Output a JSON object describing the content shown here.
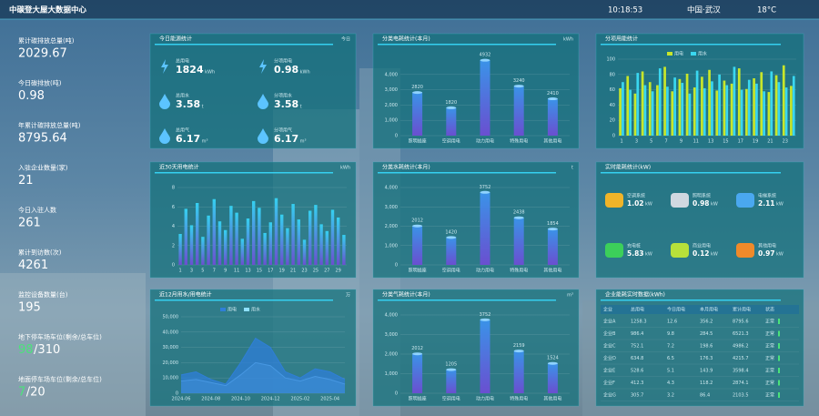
{
  "header": {
    "title": "中碳登大屋大数据中心",
    "time": "10:18:53",
    "location": "中国·武汉",
    "temperature": "18°C"
  },
  "stats": [
    {
      "label": "累计碳排放总量(吨)",
      "value": 2029.67
    },
    {
      "label": "今日碳排放(吨)",
      "value": 0.98
    },
    {
      "label": "年累计碳排放总量(吨)",
      "value": 8795.64
    },
    {
      "label": "入驻企业数量(家)",
      "value": 21
    },
    {
      "label": "今日入驻人数",
      "value": 261
    },
    {
      "label": "累计到访数(次)",
      "value": 4261
    },
    {
      "label": "监控设备数量(台)",
      "value": 195
    },
    {
      "label": "地下停车场车位(剩余/总车位)",
      "value": 98,
      "total": "/310"
    },
    {
      "label": "地面停车场车位(剩余/总车位)",
      "value": 7,
      "total": "/20"
    }
  ],
  "panels": [
    {
      "type": "kpi",
      "title": "今日能源统计",
      "unit": "今日",
      "items": [
        {
          "label": "总用电",
          "value": 1824,
          "unit": "kWh",
          "icon": "bolt"
        },
        {
          "label": "分项用电",
          "value": 0.98,
          "unit": "kWh",
          "icon": "bolt"
        },
        {
          "label": "总用水",
          "value": 3.58,
          "unit": "t",
          "icon": "drop"
        },
        {
          "label": "分项用水",
          "value": 3.58,
          "unit": "t",
          "icon": "drop"
        },
        {
          "label": "总用气",
          "value": 6.17,
          "unit": "m³",
          "icon": "drop"
        },
        {
          "label": "分项用气",
          "value": 6.17,
          "unit": "m³",
          "icon": "drop"
        }
      ]
    },
    {
      "type": "bar",
      "title": "分类电耗统计(本月)",
      "unit": "kWh",
      "color": "#3a93e8",
      "categories": [
        "照明插座",
        "空调用电",
        "动力用电",
        "特殊用电",
        "其他用电"
      ],
      "values": [
        2820,
        1820,
        4932,
        3240,
        2410
      ],
      "ylim": [
        0,
        5000
      ],
      "yticks": [
        0,
        {
          "value": 1000,
          "label": "1,000"
        },
        {
          "value": 2000,
          "label": "2,000"
        },
        {
          "value": 3000,
          "label": "3,000"
        },
        {
          "value": 4000,
          "label": "4,000"
        }
      ]
    },
    {
      "type": "grouped",
      "title": "分项用能统计",
      "color": "#c8e62a",
      "categories": [
        "1",
        null,
        "3",
        null,
        "5",
        null,
        "7",
        null,
        "9",
        null,
        "11",
        null,
        "13",
        null,
        "15",
        null,
        "17",
        null,
        "19",
        null,
        "21",
        null,
        "23",
        null
      ],
      "series": [
        {
          "name": "用电",
          "color": "#c8e62a",
          "values": [
            62,
            78,
            55,
            84,
            70,
            66,
            90,
            58,
            74,
            81,
            63,
            77,
            86,
            59,
            72,
            68,
            88,
            61,
            75,
            83,
            57,
            79,
            92,
            65
          ]
        },
        {
          "name": "用水",
          "color": "#3ad7f0",
          "values": [
            70,
            60,
            82,
            66,
            58,
            88,
            64,
            76,
            69,
            55,
            85,
            62,
            71,
            80,
            66,
            90,
            60,
            73,
            68,
            58,
            84,
            70,
            63,
            78
          ]
        }
      ],
      "ylim": [
        0,
        100
      ],
      "yticks": [
        0,
        20,
        40,
        60,
        80,
        100
      ]
    },
    {
      "type": "bar",
      "title": "近30天用电统计",
      "unit": "kWh",
      "color": "#35d0f0",
      "categories": [
        "1",
        null,
        "3",
        null,
        "5",
        null,
        "7",
        null,
        "9",
        null,
        "11",
        null,
        "13",
        null,
        "15",
        null,
        "17",
        null,
        "19",
        null,
        "21",
        null,
        "23",
        null,
        "25",
        null,
        "27",
        null,
        "29",
        null
      ],
      "values": [
        3.2,
        5.8,
        4.1,
        6.4,
        2.9,
        5.1,
        6.8,
        4.5,
        3.6,
        6.1,
        5.4,
        2.7,
        4.8,
        6.6,
        5.9,
        3.3,
        4.4,
        6.9,
        5.2,
        3.8,
        6.3,
        4.7,
        2.6,
        5.6,
        6.2,
        4.2,
        3.5,
        5.7,
        4.9,
        3.1
      ],
      "ylim": [
        0,
        8
      ],
      "yticks": [
        0,
        2,
        4,
        6,
        8
      ]
    },
    {
      "type": "bar",
      "title": "分类水耗统计(本月)",
      "unit": "t",
      "color": "#3a93e8",
      "categories": [
        "照明插座",
        "空调用电",
        "动力用电",
        "特殊用电",
        "其他用电"
      ],
      "values": [
        2012,
        1420,
        3752,
        2438,
        1854
      ],
      "ylim": [
        0,
        4000
      ],
      "yticks": [
        0,
        {
          "value": 1000,
          "label": "1,000"
        },
        {
          "value": 2000,
          "label": "2,000"
        },
        {
          "value": 3000,
          "label": "3,000"
        },
        {
          "value": 4000,
          "label": "4,000"
        }
      ]
    },
    {
      "type": "power",
      "title": "实时能耗统计(kW)",
      "items": [
        {
          "label": "空调系统",
          "value": 1.02,
          "unit": "kW",
          "color": "#f0b429"
        },
        {
          "label": "照明系统",
          "value": 0.98,
          "unit": "kW",
          "color": "#d0d8e0"
        },
        {
          "label": "电梯系统",
          "value": 2.11,
          "unit": "kW",
          "color": "#4aa8f0"
        },
        {
          "label": "充电桩",
          "value": 5.83,
          "unit": "kW",
          "color": "#3ccf5a"
        },
        {
          "label": "商业用电",
          "value": 0.12,
          "unit": "kW",
          "color": "#b8e03a"
        },
        {
          "label": "其他用电",
          "value": 0.97,
          "unit": "kW",
          "color": "#f08a2a"
        }
      ]
    },
    {
      "type": "area",
      "title": "近12月用水/用电统计",
      "unit": "万",
      "categories": [
        "2024-06",
        null,
        "2024-08",
        null,
        "2024-10",
        null,
        "2024-12",
        null,
        "2025-02",
        null,
        "2025-04",
        null
      ],
      "series": [
        {
          "name": "用电",
          "color": "#2f7fd8",
          "values": [
            12000,
            14000,
            9000,
            6000,
            20000,
            36000,
            30000,
            14000,
            10000,
            16000,
            14000,
            9000
          ]
        },
        {
          "name": "用水",
          "color": "#8fe0ff",
          "values": [
            8000,
            9000,
            7000,
            5000,
            12000,
            20000,
            18000,
            10000,
            8000,
            11000,
            9000,
            6000
          ]
        }
      ],
      "ylim": [
        0,
        50000
      ],
      "yticks": [
        0,
        {
          "value": 10000,
          "label": "10,000"
        },
        {
          "value": 20000,
          "label": "20,000"
        },
        {
          "value": 30000,
          "label": "30,000"
        },
        {
          "value": 40000,
          "label": "40,000"
        },
        {
          "value": 50000,
          "label": "50,000"
        }
      ]
    },
    {
      "type": "bar",
      "title": "分类气耗统计(本月)",
      "unit": "m³",
      "color": "#3a93e8",
      "categories": [
        "照明插座",
        "空调用电",
        "动力用电",
        "特殊用电",
        "其他用电"
      ],
      "values": [
        2012,
        1205,
        3752,
        2159,
        1524
      ],
      "ylim": [
        0,
        4000
      ],
      "yticks": [
        0,
        {
          "value": 1000,
          "label": "1,000"
        },
        {
          "value": 2000,
          "label": "2,000"
        },
        {
          "value": 3000,
          "label": "3,000"
        },
        {
          "value": 4000,
          "label": "4,000"
        }
      ]
    },
    {
      "type": "table",
      "title": "企业能耗实时数据(kWh)",
      "columns": [
        "企业",
        "总用电",
        "今日用电",
        "本月用电",
        "累计用电",
        "状态"
      ],
      "rows": [
        [
          "企业A",
          "1258.3",
          "12.6",
          "356.2",
          "8795.6",
          "正常"
        ],
        [
          "企业B",
          "986.4",
          "9.8",
          "284.5",
          "6521.3",
          "正常"
        ],
        [
          "企业C",
          "752.1",
          "7.2",
          "198.6",
          "4986.2",
          "正常"
        ],
        [
          "企业D",
          "634.8",
          "6.5",
          "176.3",
          "4215.7",
          "正常"
        ],
        [
          "企业E",
          "528.6",
          "5.1",
          "143.9",
          "3598.4",
          "正常"
        ],
        [
          "企业F",
          "412.3",
          "4.3",
          "118.2",
          "2874.1",
          "正常"
        ],
        [
          "企业G",
          "305.7",
          "3.2",
          "86.4",
          "2103.5",
          "正常"
        ]
      ]
    }
  ]
}
